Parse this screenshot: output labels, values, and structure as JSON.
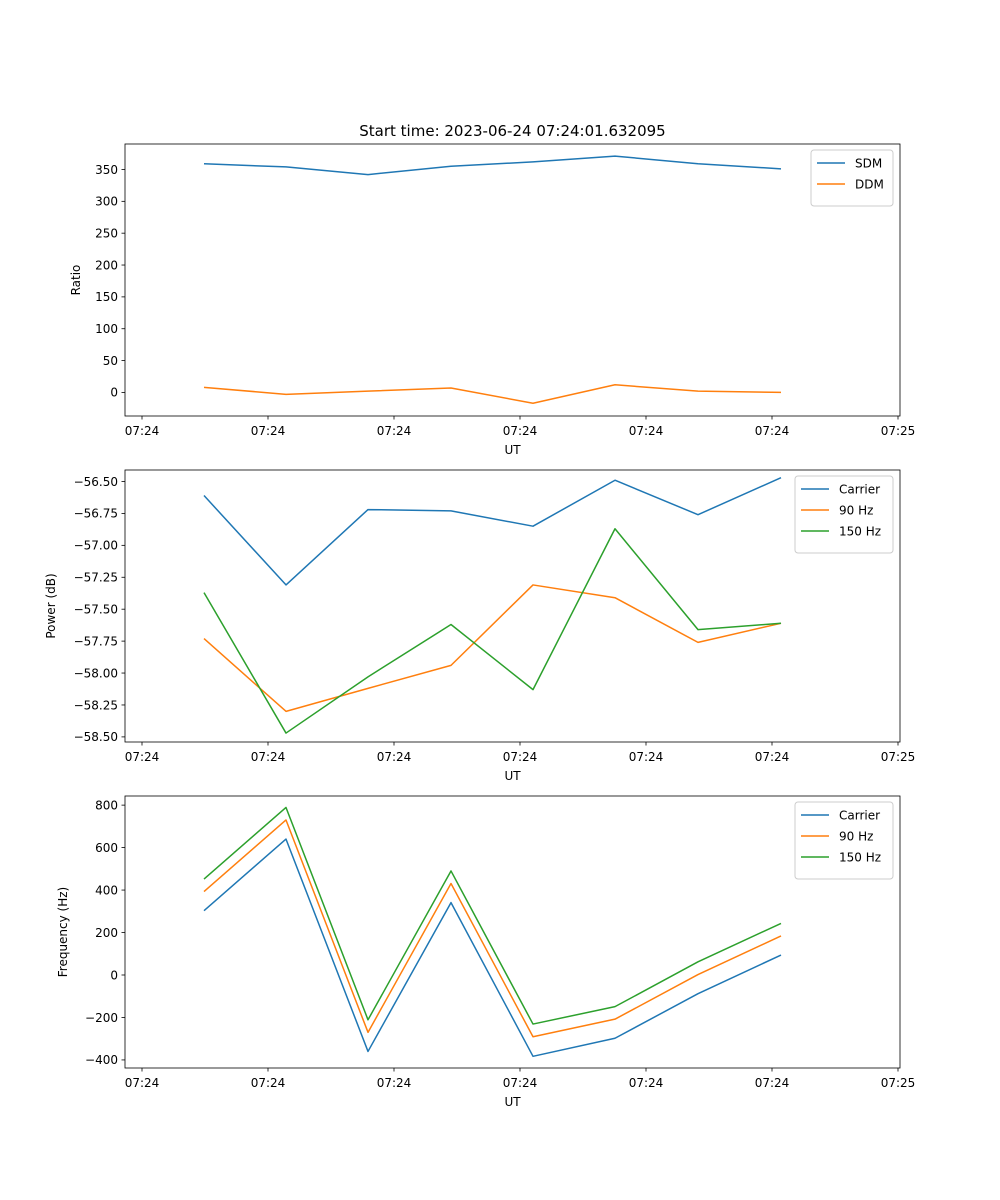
{
  "title": "Start time: 2023-06-24 07:24:01.632095",
  "chart_data": [
    {
      "type": "line",
      "ylabel": "Ratio",
      "xlabel": "UT",
      "x_ticks": [
        "07:24",
        "07:24",
        "07:24",
        "07:24",
        "07:24",
        "07:24",
        "07:25"
      ],
      "y_ticks": [
        0,
        50,
        100,
        150,
        200,
        250,
        300,
        350
      ],
      "ylim": [
        -37,
        390
      ],
      "legend_position": "top-right",
      "series": [
        {
          "name": "SDM",
          "color": "#1f77b4",
          "values": [
            359,
            354,
            342,
            355,
            362,
            371,
            359,
            351
          ]
        },
        {
          "name": "DDM",
          "color": "#ff7f0e",
          "values": [
            8,
            -3,
            2,
            7,
            -17,
            12,
            2,
            0
          ]
        }
      ]
    },
    {
      "type": "line",
      "ylabel": "Power (dB)",
      "xlabel": "UT",
      "x_ticks": [
        "07:24",
        "07:24",
        "07:24",
        "07:24",
        "07:24",
        "07:24",
        "07:25"
      ],
      "y_ticks": [
        -58.5,
        -58.25,
        -58.0,
        -57.75,
        -57.5,
        -57.25,
        -57.0,
        -56.75,
        -56.5
      ],
      "y_tick_labels": [
        "−58.50",
        "−58.25",
        "−58.00",
        "−57.75",
        "−57.50",
        "−57.25",
        "−57.00",
        "−56.75",
        "−56.50"
      ],
      "ylim": [
        -58.54,
        -56.41
      ],
      "legend_position": "top-right",
      "series": [
        {
          "name": "Carrier",
          "color": "#1f77b4",
          "values": [
            -56.61,
            -57.31,
            -56.72,
            -56.73,
            -56.85,
            -56.49,
            -56.76,
            -56.47
          ]
        },
        {
          "name": "90 Hz",
          "color": "#ff7f0e",
          "values": [
            -57.73,
            -58.3,
            -58.12,
            -57.94,
            -57.31,
            -57.41,
            -57.76,
            -57.61
          ]
        },
        {
          "name": "150 Hz",
          "color": "#2ca02c",
          "values": [
            -57.37,
            -58.47,
            -58.03,
            -57.62,
            -58.13,
            -56.87,
            -57.66,
            -57.61
          ]
        }
      ]
    },
    {
      "type": "line",
      "ylabel": "Frequency (Hz)",
      "xlabel": "UT",
      "x_ticks": [
        "07:24",
        "07:24",
        "07:24",
        "07:24",
        "07:24",
        "07:24",
        "07:25"
      ],
      "y_ticks": [
        -400,
        -200,
        0,
        200,
        400,
        600,
        800
      ],
      "y_tick_labels": [
        "−400",
        "−200",
        "0",
        "200",
        "400",
        "600",
        "800"
      ],
      "ylim": [
        -438,
        843
      ],
      "legend_position": "top-right",
      "series": [
        {
          "name": "Carrier",
          "color": "#1f77b4",
          "values": [
            303,
            640,
            -360,
            341,
            -383,
            -298,
            -88,
            94
          ]
        },
        {
          "name": "90 Hz",
          "color": "#ff7f0e",
          "values": [
            393,
            730,
            -270,
            431,
            -291,
            -208,
            2,
            184
          ]
        },
        {
          "name": "150 Hz",
          "color": "#2ca02c",
          "values": [
            452,
            789,
            -211,
            490,
            -231,
            -149,
            62,
            243
          ]
        }
      ]
    }
  ]
}
